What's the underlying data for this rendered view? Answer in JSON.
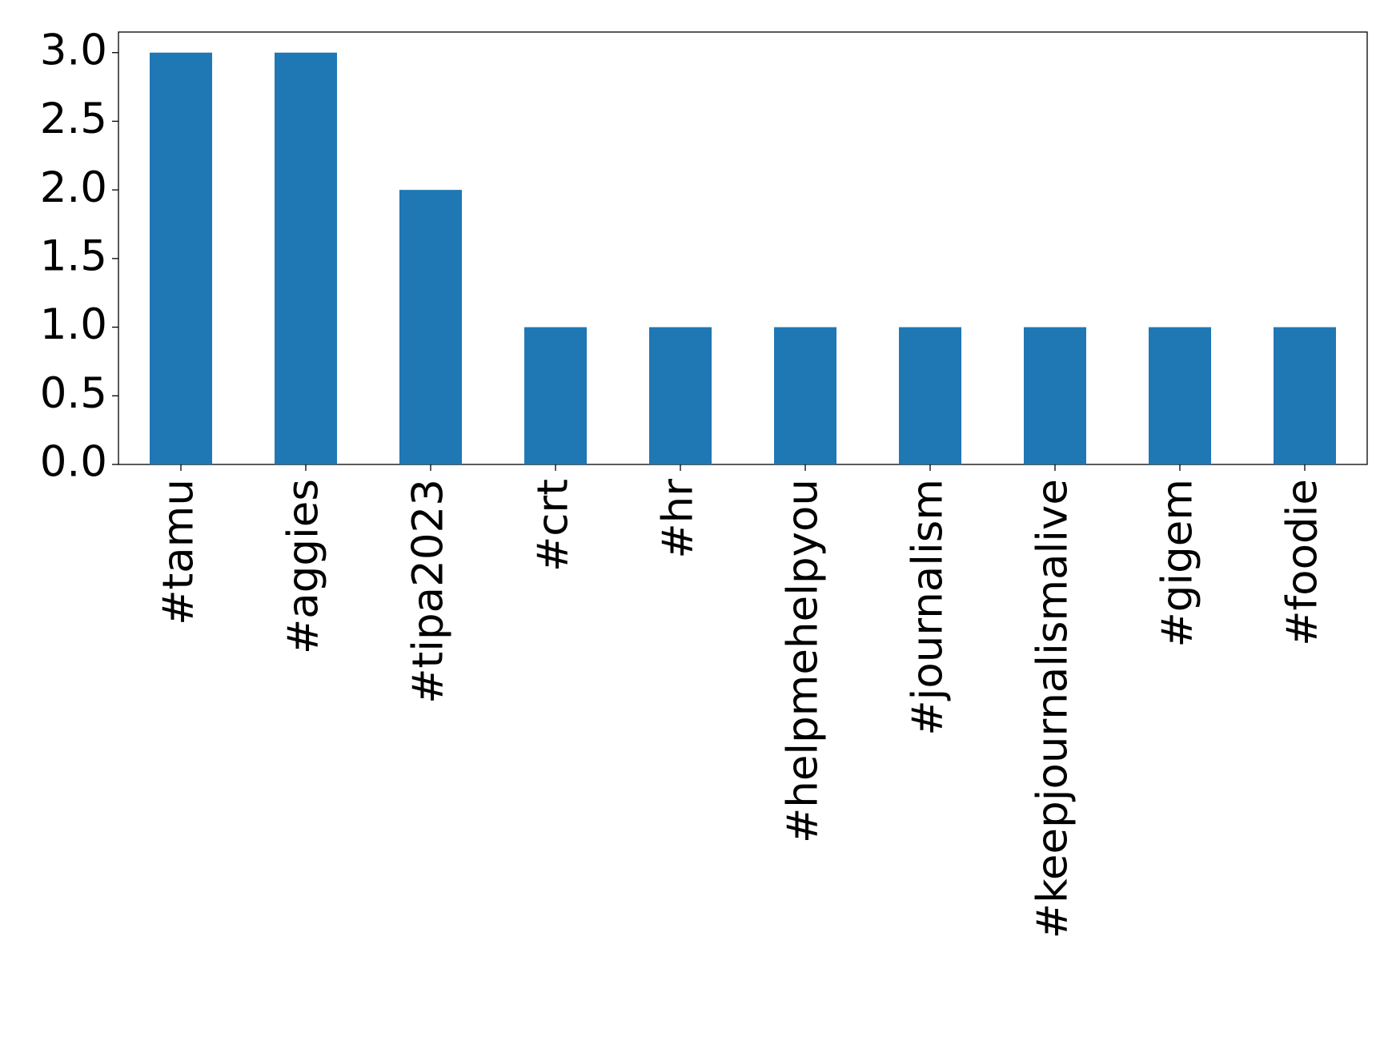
{
  "chart_data": {
    "type": "bar",
    "categories": [
      "#tamu",
      "#aggies",
      "#tipa2023",
      "#crt",
      "#hr",
      "#helpmehelpyou",
      "#journalism",
      "#keepjournalismalive",
      "#gigem",
      "#foodie"
    ],
    "values": [
      3,
      3,
      2,
      1,
      1,
      1,
      1,
      1,
      1,
      1
    ],
    "color": "#1f77b4",
    "ylim": [
      0,
      3.15
    ],
    "yticks": [
      {
        "value": 0,
        "label": "0.0"
      },
      {
        "value": 0.5,
        "label": "0.5"
      },
      {
        "value": 1,
        "label": "1.0"
      },
      {
        "value": 1.5,
        "label": "1.5"
      },
      {
        "value": 2,
        "label": "2.0"
      },
      {
        "value": 2.5,
        "label": "2.5"
      },
      {
        "value": 3,
        "label": "3.0"
      }
    ],
    "grid": false
  }
}
